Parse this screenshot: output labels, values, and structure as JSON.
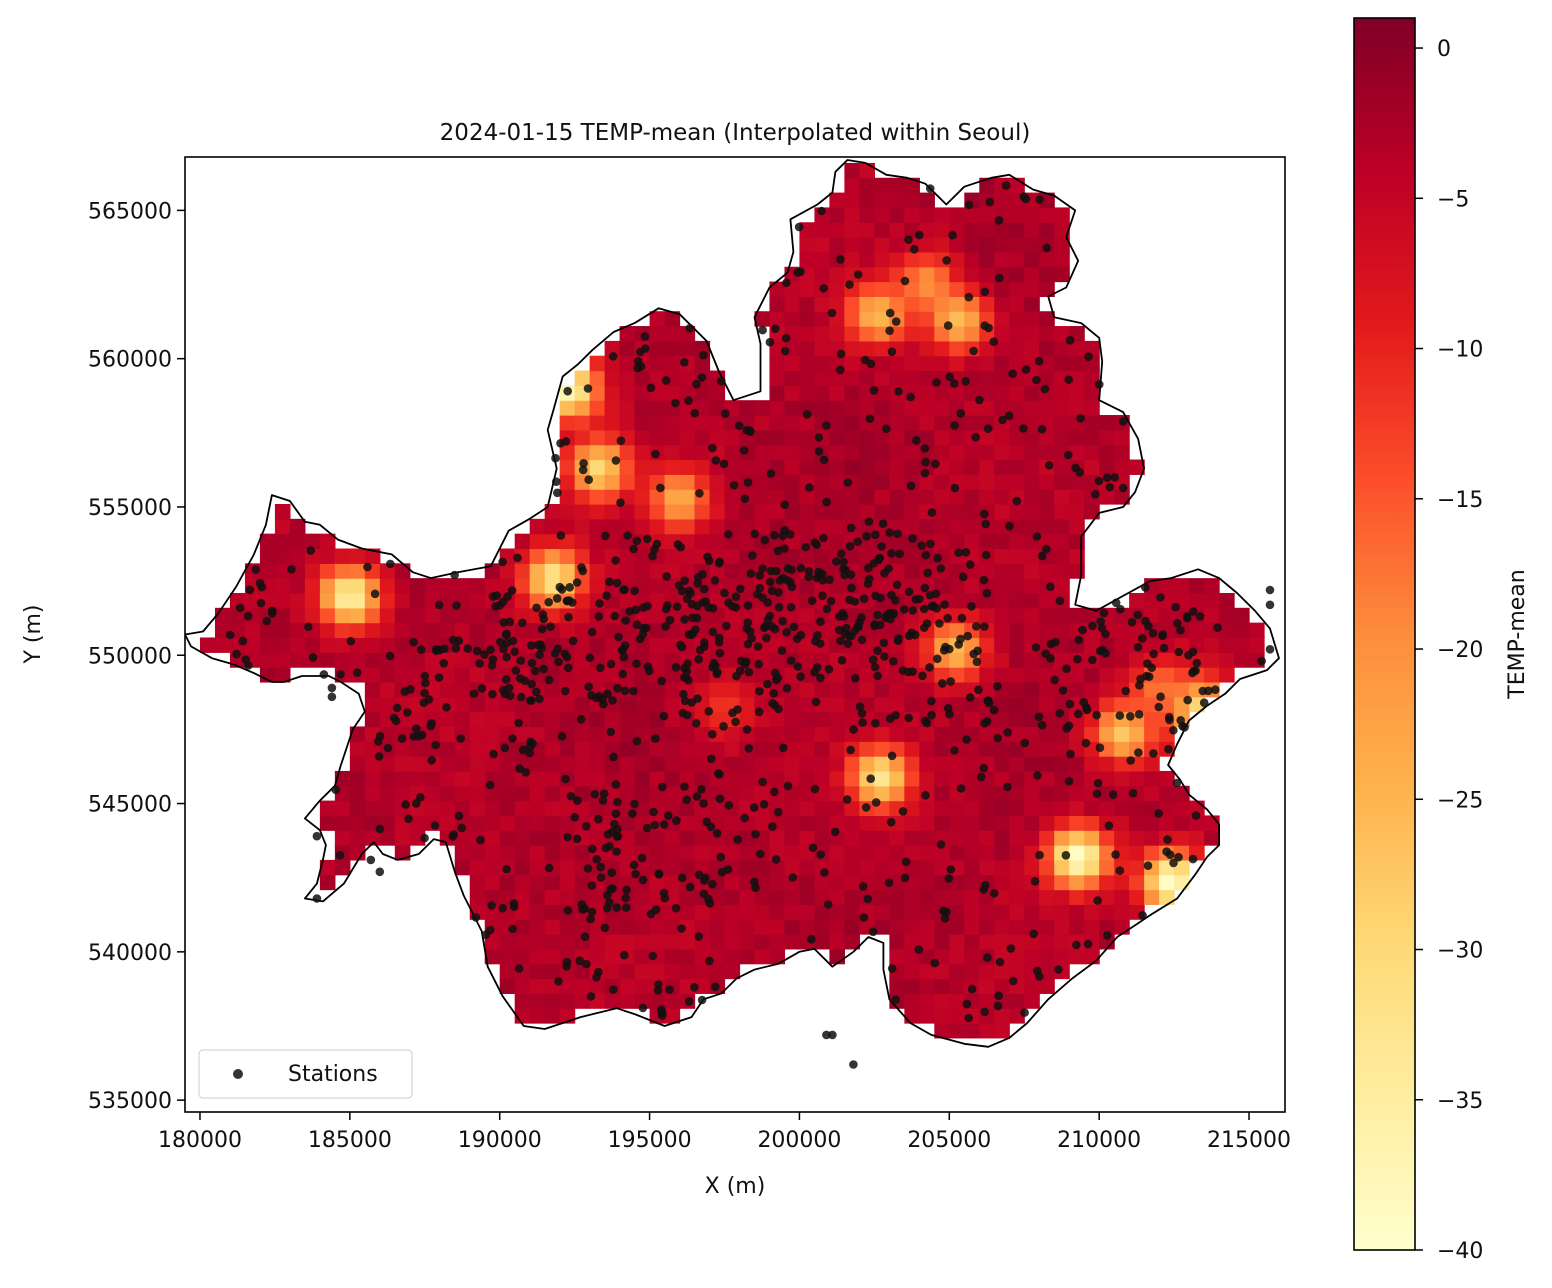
{
  "chart_data": {
    "type": "heatmap",
    "title": "2024-01-15  TEMP-mean  (Interpolated within Seoul)",
    "xlabel": "X (m)",
    "ylabel": "Y (m)",
    "xlim": [
      179500,
      216200
    ],
    "ylim": [
      534600,
      566800
    ],
    "xticks": [
      180000,
      185000,
      190000,
      195000,
      200000,
      205000,
      210000,
      215000
    ],
    "yticks": [
      535000,
      540000,
      545000,
      550000,
      555000,
      560000,
      565000
    ],
    "grid": false,
    "legend": {
      "location": "lower-left",
      "entries": [
        {
          "label": "Stations",
          "marker": "circle",
          "color": "#111111"
        }
      ]
    },
    "colorbar": {
      "label": "TEMP-mean",
      "colormap": "YlOrRd_r",
      "range": [
        -40,
        1
      ],
      "ticks": [
        0,
        -5,
        -10,
        -15,
        -20,
        -25,
        -30,
        -35,
        -40
      ]
    },
    "colors": {
      "base_field": "#a50f2a",
      "darkest": "#800026",
      "coldest": "#ffffcc",
      "station_marker": "#111111",
      "boundary": "#000000"
    },
    "field": {
      "cell_size_m": 500,
      "baseline_value": -3.2,
      "cold_spots": [
        {
          "x": 192300,
          "y": 559000,
          "value": -38
        },
        {
          "x": 193300,
          "y": 556300,
          "value": -30
        },
        {
          "x": 185000,
          "y": 552000,
          "value": -36
        },
        {
          "x": 191800,
          "y": 552600,
          "value": -33
        },
        {
          "x": 196000,
          "y": 555300,
          "value": -24
        },
        {
          "x": 202600,
          "y": 561500,
          "value": -26
        },
        {
          "x": 204200,
          "y": 562600,
          "value": -20
        },
        {
          "x": 205300,
          "y": 561300,
          "value": -26
        },
        {
          "x": 197500,
          "y": 548200,
          "value": -12
        },
        {
          "x": 205200,
          "y": 550200,
          "value": -26
        },
        {
          "x": 202700,
          "y": 545900,
          "value": -33
        },
        {
          "x": 209300,
          "y": 543200,
          "value": -40
        },
        {
          "x": 212400,
          "y": 542400,
          "value": -40
        },
        {
          "x": 213300,
          "y": 548200,
          "value": -32
        },
        {
          "x": 210800,
          "y": 547400,
          "value": -28
        },
        {
          "x": 212000,
          "y": 548900,
          "value": -18
        }
      ]
    },
    "boundary_vertices": [
      [
        179500,
        550700
      ],
      [
        180100,
        550800
      ],
      [
        180600,
        551400
      ],
      [
        181200,
        552300
      ],
      [
        181800,
        553400
      ],
      [
        182200,
        554400
      ],
      [
        182400,
        555400
      ],
      [
        183000,
        555200
      ],
      [
        183500,
        554500
      ],
      [
        184000,
        554400
      ],
      [
        184600,
        553900
      ],
      [
        185400,
        553600
      ],
      [
        186400,
        553400
      ],
      [
        187100,
        552800
      ],
      [
        187700,
        552600
      ],
      [
        188600,
        552800
      ],
      [
        189700,
        553000
      ],
      [
        190300,
        554200
      ],
      [
        191000,
        554600
      ],
      [
        191600,
        555000
      ],
      [
        191900,
        556300
      ],
      [
        191600,
        557600
      ],
      [
        191800,
        558300
      ],
      [
        192100,
        559400
      ],
      [
        192600,
        559800
      ],
      [
        193100,
        560300
      ],
      [
        193800,
        560900
      ],
      [
        194500,
        561200
      ],
      [
        195300,
        561700
      ],
      [
        196000,
        561500
      ],
      [
        196900,
        560600
      ],
      [
        197300,
        559600
      ],
      [
        197800,
        558600
      ],
      [
        198700,
        558900
      ],
      [
        198700,
        560500
      ],
      [
        198500,
        561400
      ],
      [
        199000,
        562400
      ],
      [
        199600,
        562900
      ],
      [
        199800,
        563600
      ],
      [
        199700,
        564700
      ],
      [
        200600,
        565200
      ],
      [
        201100,
        565600
      ],
      [
        201200,
        566300
      ],
      [
        201600,
        566700
      ],
      [
        202200,
        566600
      ],
      [
        202900,
        566200
      ],
      [
        203600,
        566100
      ],
      [
        204200,
        565900
      ],
      [
        204900,
        565200
      ],
      [
        205500,
        565800
      ],
      [
        206400,
        566100
      ],
      [
        207000,
        566200
      ],
      [
        207800,
        565700
      ],
      [
        208500,
        565500
      ],
      [
        209200,
        565000
      ],
      [
        208900,
        564100
      ],
      [
        209300,
        563300
      ],
      [
        208900,
        562400
      ],
      [
        208300,
        562100
      ],
      [
        208500,
        561400
      ],
      [
        209400,
        561200
      ],
      [
        210000,
        560700
      ],
      [
        210100,
        559900
      ],
      [
        210000,
        558600
      ],
      [
        210800,
        558200
      ],
      [
        211300,
        557300
      ],
      [
        211500,
        556300
      ],
      [
        211200,
        555500
      ],
      [
        210800,
        555000
      ],
      [
        210000,
        554800
      ],
      [
        209400,
        554000
      ],
      [
        209400,
        552700
      ],
      [
        209200,
        551700
      ],
      [
        209900,
        551500
      ],
      [
        210800,
        552000
      ],
      [
        211700,
        552500
      ],
      [
        212400,
        552600
      ],
      [
        213300,
        552900
      ],
      [
        214000,
        552600
      ],
      [
        214600,
        552100
      ],
      [
        215200,
        551500
      ],
      [
        215700,
        550900
      ],
      [
        216000,
        549900
      ],
      [
        215600,
        549500
      ],
      [
        214700,
        549200
      ],
      [
        214200,
        548700
      ],
      [
        213600,
        548300
      ],
      [
        213000,
        547800
      ],
      [
        212600,
        547000
      ],
      [
        212300,
        546300
      ],
      [
        212700,
        545800
      ],
      [
        213000,
        545300
      ],
      [
        213600,
        544800
      ],
      [
        214000,
        544300
      ],
      [
        214000,
        543600
      ],
      [
        213600,
        543200
      ],
      [
        213200,
        542600
      ],
      [
        212600,
        541800
      ],
      [
        211800,
        541300
      ],
      [
        211200,
        540900
      ],
      [
        210600,
        540500
      ],
      [
        209900,
        539700
      ],
      [
        209100,
        539100
      ],
      [
        208300,
        538400
      ],
      [
        207600,
        537600
      ],
      [
        207000,
        537100
      ],
      [
        206300,
        536800
      ],
      [
        205500,
        536900
      ],
      [
        204400,
        537200
      ],
      [
        203700,
        537600
      ],
      [
        203000,
        538400
      ],
      [
        202800,
        539400
      ],
      [
        202800,
        540300
      ],
      [
        202300,
        540500
      ],
      [
        201800,
        540000
      ],
      [
        201100,
        539500
      ],
      [
        200500,
        540100
      ],
      [
        200000,
        540000
      ],
      [
        199300,
        539600
      ],
      [
        198500,
        539400
      ],
      [
        197900,
        539100
      ],
      [
        197400,
        538600
      ],
      [
        196800,
        538400
      ],
      [
        196400,
        537800
      ],
      [
        195500,
        537500
      ],
      [
        194500,
        537900
      ],
      [
        193900,
        538100
      ],
      [
        192700,
        537800
      ],
      [
        191500,
        537400
      ],
      [
        190800,
        537500
      ],
      [
        190100,
        538500
      ],
      [
        189600,
        539500
      ],
      [
        189400,
        540700
      ],
      [
        188800,
        541900
      ],
      [
        188500,
        542700
      ],
      [
        188200,
        543700
      ],
      [
        187800,
        543800
      ],
      [
        187300,
        543300
      ],
      [
        186600,
        543100
      ],
      [
        186100,
        543300
      ],
      [
        185800,
        543700
      ],
      [
        185400,
        543300
      ],
      [
        184800,
        542300
      ],
      [
        184100,
        541700
      ],
      [
        183500,
        541800
      ],
      [
        183900,
        542300
      ],
      [
        184100,
        543100
      ],
      [
        184200,
        543600
      ],
      [
        184000,
        544100
      ],
      [
        183500,
        544500
      ],
      [
        184000,
        545100
      ],
      [
        184500,
        545600
      ],
      [
        184700,
        546300
      ],
      [
        185100,
        547500
      ],
      [
        185500,
        548100
      ],
      [
        185300,
        548700
      ],
      [
        184700,
        549100
      ],
      [
        184300,
        549300
      ],
      [
        183400,
        549300
      ],
      [
        182800,
        549100
      ],
      [
        182400,
        549100
      ],
      [
        181800,
        549400
      ],
      [
        181100,
        549700
      ],
      [
        180400,
        549900
      ],
      [
        179700,
        550300
      ]
    ],
    "stations_count": 1057,
    "stations_outside_boundary": [
      [
        200900,
        537200
      ],
      [
        201100,
        537200
      ],
      [
        201800,
        536200
      ],
      [
        215700,
        552200
      ],
      [
        215700,
        551700
      ],
      [
        215700,
        550200
      ],
      [
        184400,
        548900
      ],
      [
        184400,
        548600
      ],
      [
        185700,
        543100
      ],
      [
        186000,
        542700
      ],
      [
        183900,
        541800
      ],
      [
        183900,
        543900
      ]
    ]
  }
}
